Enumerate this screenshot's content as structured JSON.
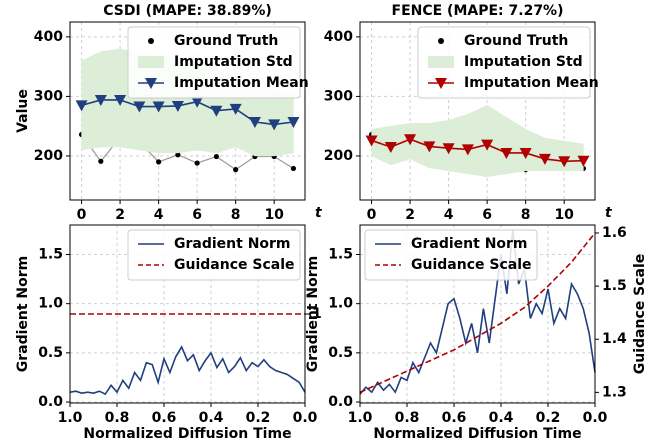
{
  "chart_data": [
    {
      "type": "line",
      "title": "CSDI (MAPE: 38.89%)",
      "xlabel": "t",
      "ylabel": "Value",
      "x": [
        0,
        1,
        2,
        3,
        4,
        5,
        6,
        7,
        8,
        9,
        10,
        11
      ],
      "xlim": [
        -0.6,
        11.6
      ],
      "xticks": [
        0,
        2,
        4,
        6,
        8,
        10
      ],
      "ylim": [
        126,
        425
      ],
      "yticks": [
        200,
        300,
        400
      ],
      "grid": true,
      "legend": "upper right",
      "series": [
        {
          "name": "Ground Truth",
          "kind": "scatter",
          "color": "#000000",
          "line_color": "#999999",
          "values": [
            236,
            191,
            231,
            224,
            190,
            202,
            188,
            199,
            177,
            199,
            199,
            179
          ]
        },
        {
          "name": "Imputation Std",
          "kind": "band",
          "color": "#dcedd8",
          "upper": [
            360,
            375,
            380,
            372,
            368,
            365,
            372,
            345,
            330,
            320,
            310,
            305
          ],
          "lower": [
            210,
            215,
            215,
            210,
            205,
            205,
            210,
            205,
            215,
            200,
            200,
            205
          ]
        },
        {
          "name": "Imputation Mean",
          "kind": "line",
          "marker": "v",
          "color": "#1f3f7f",
          "values": [
            285,
            294,
            294,
            283,
            283,
            284,
            291,
            276,
            279,
            257,
            253,
            257
          ]
        }
      ]
    },
    {
      "type": "line",
      "title": "FENCE (MAPE: 7.27%)",
      "xlabel": "t",
      "x": [
        0,
        1,
        2,
        3,
        4,
        5,
        6,
        7,
        8,
        9,
        10,
        11
      ],
      "xlim": [
        -0.6,
        11.6
      ],
      "xticks": [
        0,
        2,
        4,
        6,
        8,
        10
      ],
      "ylim": [
        126,
        425
      ],
      "yticks": [
        200,
        300,
        400
      ],
      "grid": true,
      "legend": "upper right",
      "series": [
        {
          "name": "Ground Truth",
          "kind": "scatter",
          "color": "#000000",
          "line_color": "#999999",
          "values": [
            236,
            191,
            231,
            224,
            190,
            202,
            188,
            199,
            177,
            199,
            199,
            179
          ]
        },
        {
          "name": "Imputation Std",
          "kind": "band",
          "color": "#dcedd8",
          "upper": [
            245,
            250,
            255,
            255,
            260,
            270,
            285,
            265,
            245,
            230,
            225,
            220
          ],
          "lower": [
            200,
            185,
            195,
            180,
            175,
            170,
            165,
            170,
            175,
            175,
            175,
            175
          ]
        },
        {
          "name": "Imputation Mean",
          "kind": "line",
          "marker": "v",
          "color": "#b00000",
          "values": [
            226,
            215,
            228,
            216,
            213,
            211,
            219,
            205,
            205,
            195,
            191,
            192
          ]
        }
      ]
    },
    {
      "type": "line",
      "xlabel": "Normalized Diffusion Time",
      "ylabel": "Gradient Norm",
      "ylabel_color": "#1f3f7f",
      "y2label_color": "#b00000",
      "xlim": [
        1.0,
        0.0
      ],
      "xticks": [
        {
          "value": 1,
          "label": "1.0"
        },
        0.8,
        0.6,
        0.4,
        0.2,
        {
          "value": 0,
          "label": "0.0"
        }
      ],
      "ylim": [
        -0.01,
        1.8
      ],
      "yticks": [
        {
          "value": 0,
          "label": "0.0"
        },
        0.5,
        {
          "value": 1,
          "label": "1.0"
        },
        1.5
      ],
      "y2lim": [
        0.5,
        1.5
      ],
      "y2ticks": [
        1
      ],
      "grid": true,
      "legend": "upper right",
      "series": [
        {
          "name": "Gradient Norm",
          "kind": "line",
          "color": "#1f3f7f",
          "x": [
            1.0,
            0.975,
            0.95,
            0.925,
            0.9,
            0.875,
            0.85,
            0.825,
            0.8,
            0.775,
            0.75,
            0.725,
            0.7,
            0.675,
            0.65,
            0.625,
            0.6,
            0.575,
            0.55,
            0.525,
            0.5,
            0.475,
            0.45,
            0.425,
            0.4,
            0.375,
            0.35,
            0.325,
            0.3,
            0.275,
            0.25,
            0.225,
            0.2,
            0.175,
            0.15,
            0.125,
            0.1,
            0.075,
            0.05,
            0.025,
            0.0
          ],
          "values": [
            0.1,
            0.11,
            0.09,
            0.1,
            0.09,
            0.11,
            0.08,
            0.17,
            0.1,
            0.22,
            0.14,
            0.3,
            0.22,
            0.4,
            0.38,
            0.2,
            0.44,
            0.3,
            0.46,
            0.56,
            0.42,
            0.48,
            0.32,
            0.42,
            0.5,
            0.35,
            0.44,
            0.3,
            0.36,
            0.45,
            0.32,
            0.4,
            0.36,
            0.43,
            0.36,
            0.32,
            0.3,
            0.28,
            0.24,
            0.2,
            0.1
          ]
        },
        {
          "name": "Guidance Scale",
          "kind": "line",
          "dash": true,
          "axis": "y2",
          "color": "#b00000",
          "x": [
            1.0,
            0.0
          ],
          "values": [
            1,
            1
          ]
        }
      ]
    },
    {
      "type": "line",
      "xlabel": "Normalized Diffusion Time",
      "ylabel": "Gradient Norm",
      "y2label": "Guidance Scale",
      "ylabel_color": "#1f3f7f",
      "y2label_color": "#b00000",
      "xlim": [
        1.0,
        0.0
      ],
      "xticks": [
        {
          "value": 1,
          "label": "1.0"
        },
        0.8,
        0.6,
        0.4,
        0.2,
        {
          "value": 0,
          "label": "0.0"
        }
      ],
      "ylim": [
        -0.01,
        1.8
      ],
      "yticks": [
        {
          "value": 0,
          "label": "0.0"
        },
        0.5,
        {
          "value": 1,
          "label": "1.0"
        },
        1.5
      ],
      "y2lim": [
        1.28,
        1.615
      ],
      "y2ticks": [
        1.3,
        1.4,
        1.5,
        1.6
      ],
      "grid": true,
      "legend": "upper left",
      "series": [
        {
          "name": "Gradient Norm",
          "kind": "line",
          "color": "#1f3f7f",
          "x": [
            1.0,
            0.975,
            0.95,
            0.925,
            0.9,
            0.875,
            0.85,
            0.825,
            0.8,
            0.775,
            0.75,
            0.725,
            0.7,
            0.675,
            0.65,
            0.625,
            0.6,
            0.575,
            0.55,
            0.525,
            0.5,
            0.475,
            0.45,
            0.425,
            0.4,
            0.375,
            0.35,
            0.325,
            0.3,
            0.275,
            0.25,
            0.225,
            0.2,
            0.175,
            0.15,
            0.125,
            0.1,
            0.075,
            0.05,
            0.025,
            0.0
          ],
          "values": [
            0.08,
            0.15,
            0.1,
            0.2,
            0.12,
            0.18,
            0.1,
            0.25,
            0.22,
            0.4,
            0.3,
            0.45,
            0.6,
            0.5,
            0.75,
            1.0,
            1.05,
            0.85,
            0.6,
            0.8,
            0.5,
            0.95,
            0.6,
            1.05,
            1.5,
            1.1,
            1.75,
            1.2,
            1.35,
            0.85,
            1.0,
            0.9,
            1.15,
            0.8,
            0.95,
            0.85,
            1.2,
            1.1,
            0.95,
            0.7,
            0.3
          ]
        },
        {
          "name": "Guidance Scale",
          "kind": "line",
          "dash": true,
          "axis": "y2",
          "color": "#b00000",
          "x": [
            1.0,
            0.9,
            0.8,
            0.7,
            0.6,
            0.5,
            0.4,
            0.3,
            0.2,
            0.1,
            0.0
          ],
          "values": [
            1.3,
            1.32,
            1.34,
            1.36,
            1.38,
            1.405,
            1.43,
            1.46,
            1.5,
            1.545,
            1.6
          ]
        }
      ]
    }
  ]
}
